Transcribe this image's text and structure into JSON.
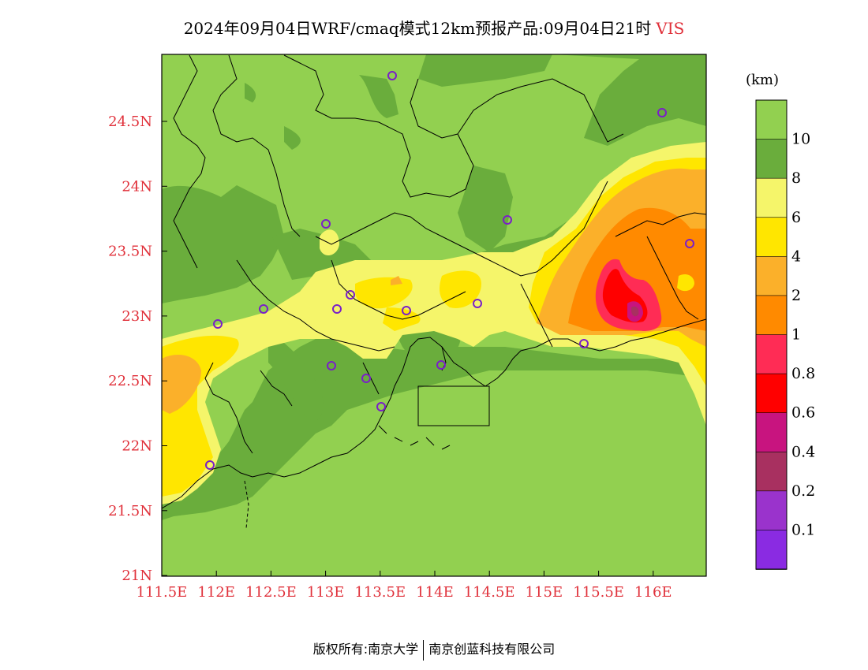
{
  "title": {
    "main": "2024年09月04日WRF/cmaq模式12km预报产品:09月04日21时",
    "variable": "VIS"
  },
  "colorbar": {
    "unit": "(km)",
    "bands": [
      {
        "color": "#92d050"
      },
      {
        "color": "#6aad3c"
      },
      {
        "color": "#f5f56a"
      },
      {
        "color": "#ffe600"
      },
      {
        "color": "#fbb02a"
      },
      {
        "color": "#ff8a00"
      },
      {
        "color": "#ff2c55"
      },
      {
        "color": "#ff0000"
      },
      {
        "color": "#c8147f"
      },
      {
        "color": "#a83060"
      },
      {
        "color": "#9a33cc"
      },
      {
        "color": "#8a2be2"
      }
    ],
    "labels": [
      "10",
      "8",
      "6",
      "4",
      "2",
      "1",
      "0.8",
      "0.6",
      "0.4",
      "0.2",
      "0.1"
    ]
  },
  "axes": {
    "lat_ticks": [
      "24.5N",
      "24N",
      "23.5N",
      "23N",
      "22.5N",
      "22N",
      "21.5N",
      "21N"
    ],
    "lon_ticks": [
      "111.5E",
      "112E",
      "112.5E",
      "113E",
      "113.5E",
      "114E",
      "114.5E",
      "115E",
      "115.5E",
      "116E"
    ],
    "tick_color": "#e0303a"
  },
  "footer": {
    "left": "版权所有:南京大学",
    "right": "南京创蓝科技有限公司"
  }
}
